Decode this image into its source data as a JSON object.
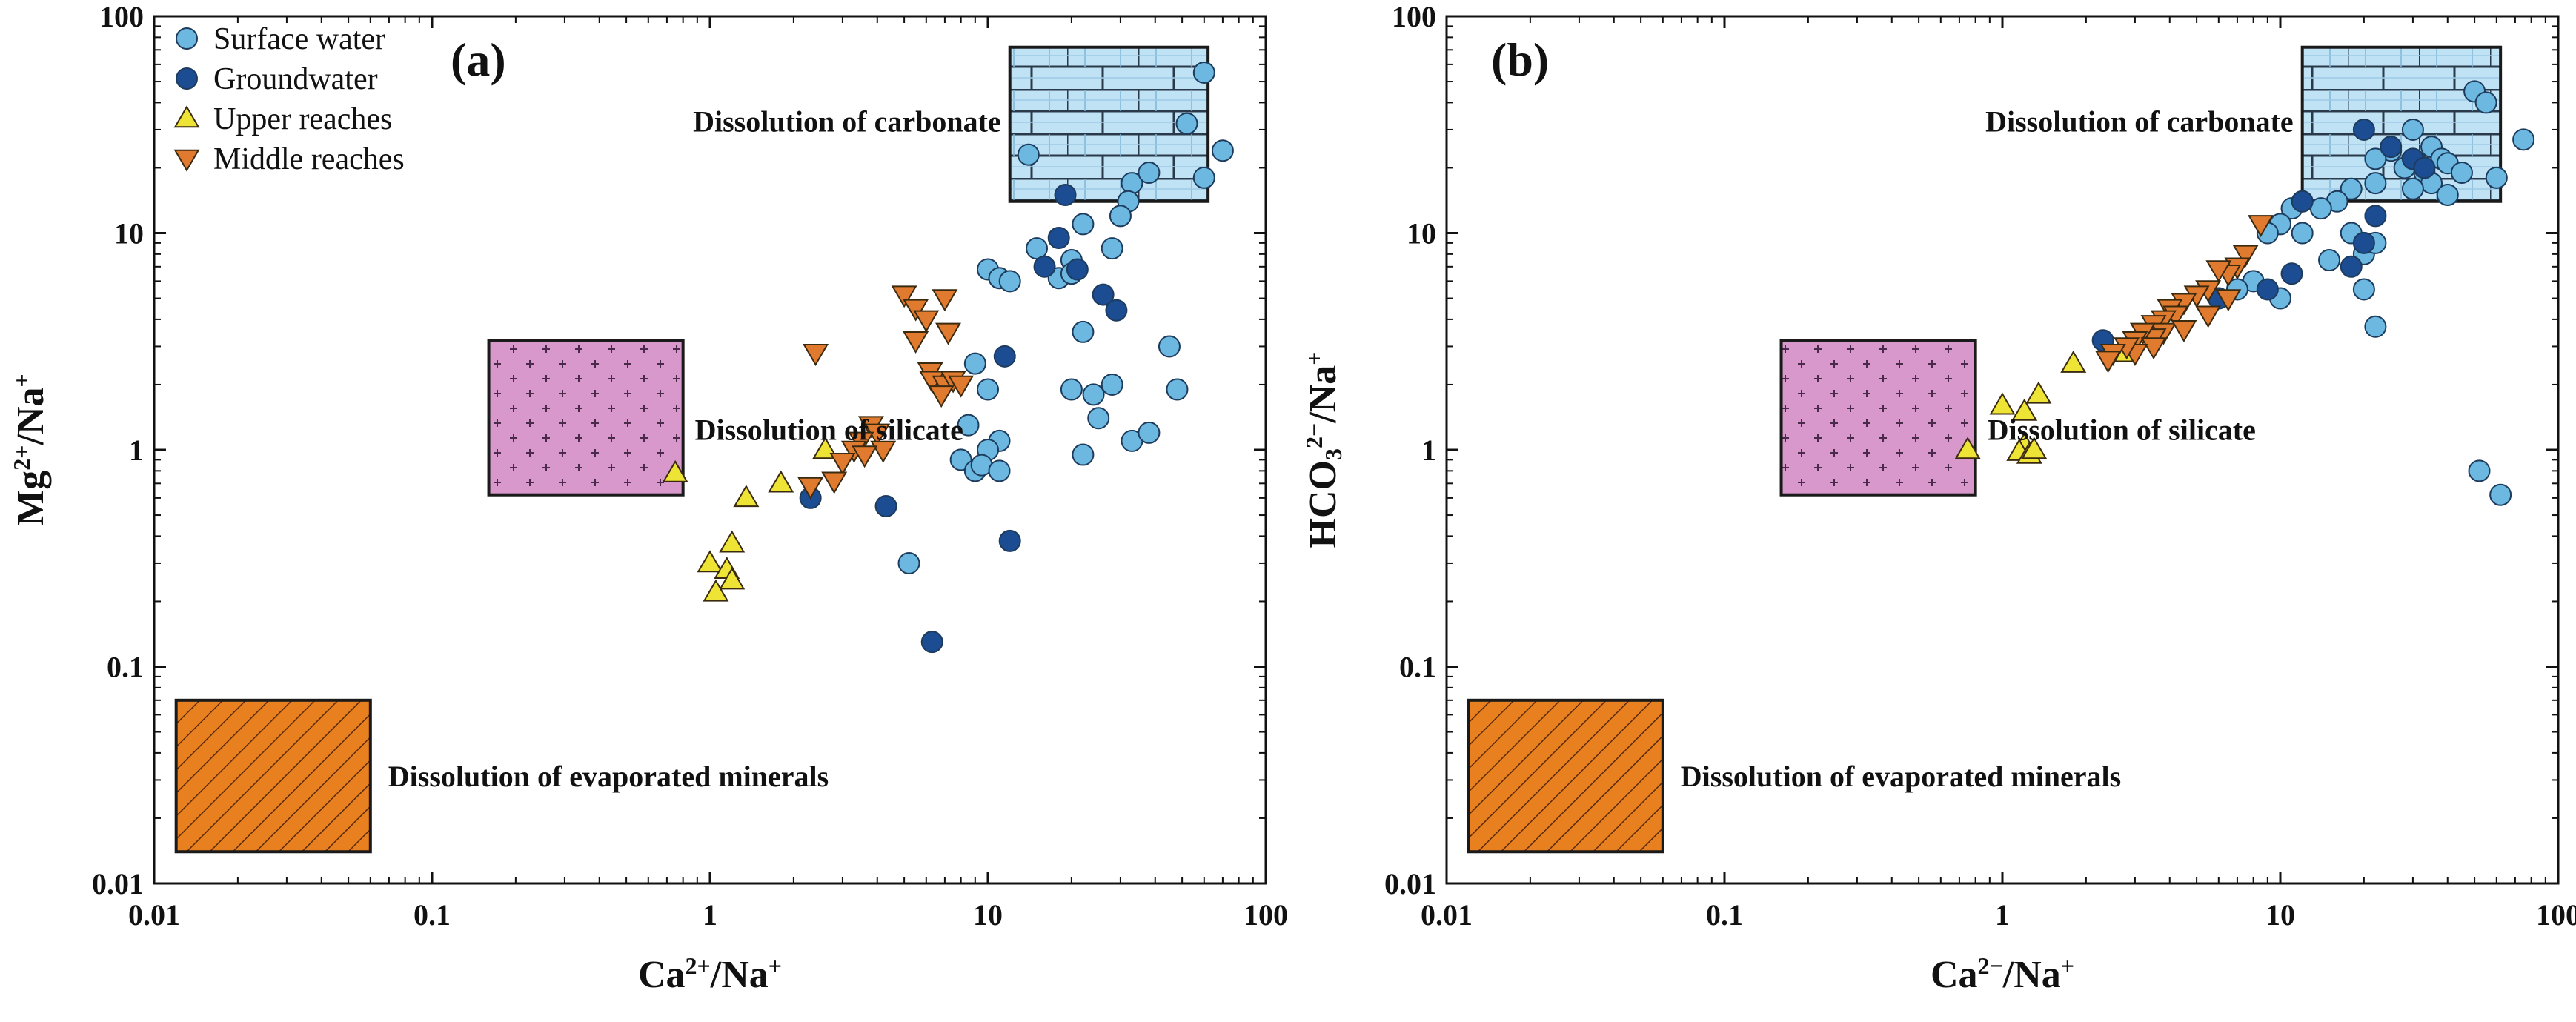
{
  "colors": {
    "surface": "#6cb8e0",
    "ground": "#1c4c92",
    "upper": "#eee436",
    "middle": "#e07a2e",
    "carbonate_fill": "#bfe2f5",
    "silicate_fill": "#d898cc",
    "evap_fill": "#e8801f"
  },
  "legend": {
    "surface": "Surface water",
    "ground": "Groundwater",
    "upper": "Upper reaches",
    "middle": "Middle reaches"
  },
  "chart_data": [
    {
      "type": "scatter",
      "panel_label": "(a)",
      "xlabel": {
        "base": "Ca",
        "sup": "2+",
        "rest": "/Na",
        "sup2": "+"
      },
      "ylabel": {
        "base": "Mg",
        "sup": "2+",
        "rest": "/Na",
        "sup2": "+"
      },
      "xscale": "log",
      "yscale": "log",
      "xlim": [
        0.01,
        100
      ],
      "ylim": [
        0.01,
        100
      ],
      "xticks": [
        "0.01",
        "0.1",
        "1",
        "10",
        "100"
      ],
      "yticks": [
        "0.01",
        "0.1",
        "1",
        "10",
        "100"
      ],
      "regions": [
        {
          "key": "carbonate",
          "label": "Dissolution of carbonate",
          "x": [
            12,
            62
          ],
          "y": [
            14,
            72
          ]
        },
        {
          "key": "silicate",
          "label": "Dissolution of silicate",
          "x": [
            0.16,
            0.8
          ],
          "y": [
            0.62,
            3.2
          ]
        },
        {
          "key": "evap",
          "label": "Dissolution of evaporated minerals",
          "x": [
            0.012,
            0.06
          ],
          "y": [
            0.014,
            0.07
          ]
        }
      ],
      "series": [
        {
          "name": "Surface water",
          "key": "surface",
          "marker": "circle",
          "points": [
            [
              60,
              55
            ],
            [
              52,
              32
            ],
            [
              70,
              24
            ],
            [
              14,
              23
            ],
            [
              60,
              18
            ],
            [
              33,
              17
            ],
            [
              38,
              19
            ],
            [
              32,
              14
            ],
            [
              30,
              12
            ],
            [
              22,
              11
            ],
            [
              15,
              8.5
            ],
            [
              10,
              6.8
            ],
            [
              11,
              6.2
            ],
            [
              12,
              6
            ],
            [
              18,
              6.2
            ],
            [
              20,
              7.5
            ],
            [
              20,
              6.5
            ],
            [
              28,
              8.5
            ],
            [
              22,
              3.5
            ],
            [
              24,
              1.8
            ],
            [
              28,
              2.0
            ],
            [
              20,
              1.9
            ],
            [
              10,
              1.9
            ],
            [
              9,
              2.5
            ],
            [
              45,
              3
            ],
            [
              48,
              1.9
            ],
            [
              33,
              1.1
            ],
            [
              38,
              1.2
            ],
            [
              22,
              0.95
            ],
            [
              25,
              1.4
            ],
            [
              11,
              1.1
            ],
            [
              10,
              1
            ],
            [
              8,
              0.9
            ],
            [
              9,
              0.8
            ],
            [
              9.5,
              0.85
            ],
            [
              11,
              0.8
            ],
            [
              8.5,
              1.3
            ],
            [
              5.2,
              0.3
            ]
          ]
        },
        {
          "name": "Groundwater",
          "key": "ground",
          "marker": "circle",
          "points": [
            [
              19,
              15
            ],
            [
              18,
              9.5
            ],
            [
              16,
              7
            ],
            [
              21,
              6.8
            ],
            [
              26,
              5.2
            ],
            [
              29,
              4.4
            ],
            [
              11.5,
              2.7
            ],
            [
              4.3,
              0.55
            ],
            [
              2.3,
              0.6
            ],
            [
              12,
              0.38
            ],
            [
              6.3,
              0.13
            ]
          ]
        },
        {
          "name": "Upper reaches",
          "key": "upper",
          "marker": "triangle-up",
          "points": [
            [
              0.75,
              0.78
            ],
            [
              1.35,
              0.6
            ],
            [
              1.8,
              0.7
            ],
            [
              2.6,
              1.0
            ],
            [
              1.2,
              0.37
            ],
            [
              1.0,
              0.3
            ],
            [
              1.15,
              0.28
            ],
            [
              1.2,
              0.25
            ],
            [
              1.05,
              0.22
            ]
          ]
        },
        {
          "name": "Middle reaches",
          "key": "middle",
          "marker": "triangle-down",
          "points": [
            [
              5.0,
              5.2
            ],
            [
              7.0,
              5.0
            ],
            [
              5.5,
              4.5
            ],
            [
              6.0,
              4.0
            ],
            [
              7.2,
              3.5
            ],
            [
              5.5,
              3.2
            ],
            [
              2.4,
              2.8
            ],
            [
              6.2,
              2.3
            ],
            [
              6.3,
              2.1
            ],
            [
              7.0,
              2.0
            ],
            [
              7.5,
              2.1
            ],
            [
              8.0,
              2.0
            ],
            [
              6.8,
              1.8
            ],
            [
              3.8,
              1.3
            ],
            [
              4.0,
              1.2
            ],
            [
              3.5,
              1.1
            ],
            [
              3.3,
              1.0
            ],
            [
              4.2,
              1.0
            ],
            [
              3.6,
              0.95
            ],
            [
              3.0,
              0.88
            ],
            [
              2.8,
              0.72
            ],
            [
              2.3,
              0.68
            ]
          ]
        }
      ]
    },
    {
      "type": "scatter",
      "panel_label": "(b)",
      "xlabel": {
        "base": "Ca",
        "sup": "2−",
        "rest": "/Na",
        "sup2": "+"
      },
      "ylabel": {
        "base": "HCO",
        "sub": "3",
        "sup": "2−",
        "rest": "/Na",
        "sup2": "+"
      },
      "xscale": "log",
      "yscale": "log",
      "xlim": [
        0.01,
        100
      ],
      "ylim": [
        0.01,
        100
      ],
      "xticks": [
        "0.01",
        "0.1",
        "1",
        "10",
        "100"
      ],
      "yticks": [
        "0.01",
        "0.1",
        "1",
        "10",
        "100"
      ],
      "regions": [
        {
          "key": "carbonate",
          "label": "Dissolution of carbonate",
          "x": [
            12,
            62
          ],
          "y": [
            14,
            72
          ]
        },
        {
          "key": "silicate",
          "label": "Dissolution of silicate",
          "x": [
            0.16,
            0.8
          ],
          "y": [
            0.62,
            3.2
          ]
        },
        {
          "key": "evap",
          "label": "Dissolution of evaporated minerals",
          "x": [
            0.012,
            0.06
          ],
          "y": [
            0.014,
            0.07
          ]
        }
      ],
      "series": [
        {
          "name": "Surface water",
          "key": "surface",
          "marker": "circle",
          "points": [
            [
              50,
              45
            ],
            [
              55,
              40
            ],
            [
              75,
              27
            ],
            [
              30,
              30
            ],
            [
              35,
              25
            ],
            [
              38,
              22
            ],
            [
              25,
              24
            ],
            [
              22,
              22
            ],
            [
              28,
              20
            ],
            [
              33,
              19
            ],
            [
              40,
              21
            ],
            [
              45,
              19
            ],
            [
              35,
              17
            ],
            [
              30,
              16
            ],
            [
              22,
              17
            ],
            [
              40,
              15
            ],
            [
              60,
              18
            ],
            [
              18,
              16
            ],
            [
              16,
              14
            ],
            [
              14,
              13
            ],
            [
              11,
              13
            ],
            [
              10,
              11
            ],
            [
              9,
              10
            ],
            [
              12,
              10
            ],
            [
              18,
              10
            ],
            [
              20,
              8
            ],
            [
              15,
              7.5
            ],
            [
              22,
              9
            ],
            [
              10,
              5
            ],
            [
              8,
              6
            ],
            [
              7,
              5.5
            ],
            [
              20,
              5.5
            ],
            [
              22,
              3.7
            ],
            [
              52,
              0.8
            ],
            [
              62,
              0.62
            ]
          ]
        },
        {
          "name": "Groundwater",
          "key": "ground",
          "marker": "circle",
          "points": [
            [
              20,
              30
            ],
            [
              25,
              25
            ],
            [
              30,
              22
            ],
            [
              33,
              20
            ],
            [
              12,
              14
            ],
            [
              20,
              9
            ],
            [
              22,
              12
            ],
            [
              18,
              7
            ],
            [
              11,
              6.5
            ],
            [
              9,
              5.5
            ],
            [
              6,
              5
            ],
            [
              2.3,
              3.2
            ]
          ]
        },
        {
          "name": "Upper reaches",
          "key": "upper",
          "marker": "triangle-up",
          "points": [
            [
              0.75,
              1.0
            ],
            [
              1.0,
              1.6
            ],
            [
              1.35,
              1.8
            ],
            [
              1.2,
              1.5
            ],
            [
              1.2,
              1.05
            ],
            [
              1.15,
              0.98
            ],
            [
              1.25,
              0.95
            ],
            [
              1.3,
              1.0
            ],
            [
              1.8,
              2.5
            ],
            [
              2.7,
              2.8
            ]
          ]
        },
        {
          "name": "Middle reaches",
          "key": "middle",
          "marker": "triangle-down",
          "points": [
            [
              8.5,
              11
            ],
            [
              7.5,
              8
            ],
            [
              7.0,
              7
            ],
            [
              6.5,
              6.5
            ],
            [
              6.0,
              6.8
            ],
            [
              5.5,
              5.5
            ],
            [
              6.5,
              5
            ],
            [
              5.0,
              5.2
            ],
            [
              4.5,
              4.8
            ],
            [
              4.0,
              4.5
            ],
            [
              4.2,
              4.2
            ],
            [
              3.8,
              4.0
            ],
            [
              3.5,
              3.8
            ],
            [
              3.8,
              3.5
            ],
            [
              3.5,
              3.3
            ],
            [
              3.2,
              3.5
            ],
            [
              3.0,
              3.2
            ],
            [
              3.5,
              3.0
            ],
            [
              3.0,
              2.8
            ],
            [
              2.8,
              3.0
            ],
            [
              2.5,
              2.8
            ],
            [
              2.4,
              2.6
            ],
            [
              4.5,
              3.6
            ],
            [
              5.5,
              4.2
            ]
          ]
        }
      ]
    }
  ]
}
